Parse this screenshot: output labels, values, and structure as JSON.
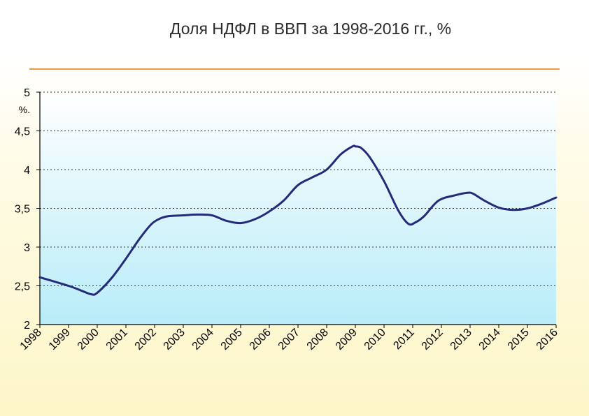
{
  "slide": {
    "title": "Доля НДФЛ в ВВП за 1998-2016 гг., %"
  },
  "chart_data": {
    "type": "line",
    "title": "Доля НДФЛ в ВВП за 1998-2016 гг., %",
    "ylabel": "%.",
    "xlabel": "",
    "ylim": [
      2,
      5
    ],
    "y_ticks": [
      "2",
      "2,5",
      "3",
      "3,5",
      "4",
      "4,5",
      "5"
    ],
    "y_tick_values": [
      2,
      2.5,
      3,
      3.5,
      4,
      4.5,
      5
    ],
    "x_ticks": [
      "1998",
      "1999",
      "2000",
      "2001",
      "2002",
      "2003",
      "2004",
      "2005",
      "2006",
      "2007",
      "2008",
      "2009",
      "2010",
      "2011",
      "2012",
      "2013",
      "2014",
      "2015",
      "2016"
    ],
    "grid": "horizontal dotted",
    "series": [
      {
        "color": "#252a7a",
        "x": [
          1998,
          1999,
          1999.5,
          1999.8,
          2000,
          2000.5,
          2001,
          2001.5,
          2001.9,
          2002.2,
          2002.5,
          2003,
          2003.5,
          2004,
          2004.5,
          2005,
          2005.5,
          2006,
          2006.5,
          2007,
          2007.5,
          2008,
          2008.5,
          2008.9,
          2009,
          2009.2,
          2009.5,
          2010,
          2010.5,
          2010.85,
          2011.1,
          2011.4,
          2011.9,
          2012.5,
          2012.9,
          2013.1,
          2013.5,
          2014,
          2014.5,
          2015,
          2015.5,
          2016
        ],
        "values": [
          2.61,
          2.5,
          2.43,
          2.39,
          2.41,
          2.6,
          2.85,
          3.12,
          3.3,
          3.37,
          3.4,
          3.41,
          3.42,
          3.41,
          3.34,
          3.31,
          3.36,
          3.46,
          3.6,
          3.8,
          3.9,
          4.0,
          4.2,
          4.3,
          4.3,
          4.28,
          4.16,
          3.85,
          3.47,
          3.3,
          3.32,
          3.4,
          3.6,
          3.67,
          3.7,
          3.69,
          3.6,
          3.51,
          3.48,
          3.5,
          3.56,
          3.64
        ]
      }
    ]
  },
  "colors": {
    "axis": "#000000",
    "grid": "#333333",
    "title_rule": "#e0a040",
    "plot_top": "#ffffff",
    "plot_bottom": "#b8ecf8"
  }
}
